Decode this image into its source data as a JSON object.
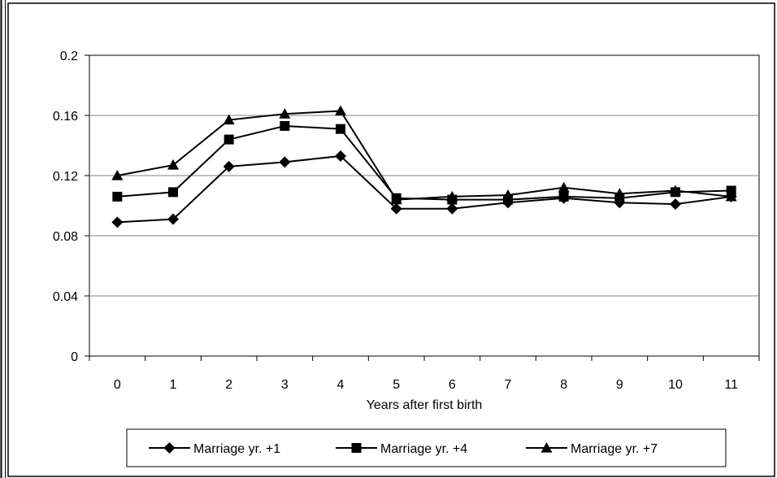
{
  "chart_data": {
    "type": "line",
    "title": "",
    "xlabel": "Years after first birth",
    "ylabel": "",
    "categories": [
      "0",
      "1",
      "2",
      "3",
      "4",
      "5",
      "6",
      "7",
      "8",
      "9",
      "10",
      "11"
    ],
    "yticks": [
      "0",
      "0.04",
      "0.08",
      "0.12",
      "0.16",
      "0.2"
    ],
    "ylim": [
      0,
      0.2
    ],
    "grid": true,
    "legend_position": "bottom",
    "series": [
      {
        "name": "Marriage yr. +1",
        "marker": "diamond",
        "values": [
          0.089,
          0.091,
          0.126,
          0.129,
          0.133,
          0.098,
          0.098,
          0.102,
          0.105,
          0.102,
          0.101,
          0.106
        ]
      },
      {
        "name": "Marriage yr. +4",
        "marker": "square",
        "values": [
          0.106,
          0.109,
          0.144,
          0.153,
          0.151,
          0.105,
          0.104,
          0.104,
          0.106,
          0.105,
          0.109,
          0.11
        ]
      },
      {
        "name": "Marriage yr. +7",
        "marker": "triangle",
        "values": [
          0.12,
          0.127,
          0.157,
          0.161,
          0.163,
          0.104,
          0.106,
          0.107,
          0.112,
          0.108,
          0.11,
          0.106
        ]
      }
    ],
    "colors": {
      "line": "#000000",
      "grid": "#808080",
      "background": "#ffffff"
    }
  }
}
